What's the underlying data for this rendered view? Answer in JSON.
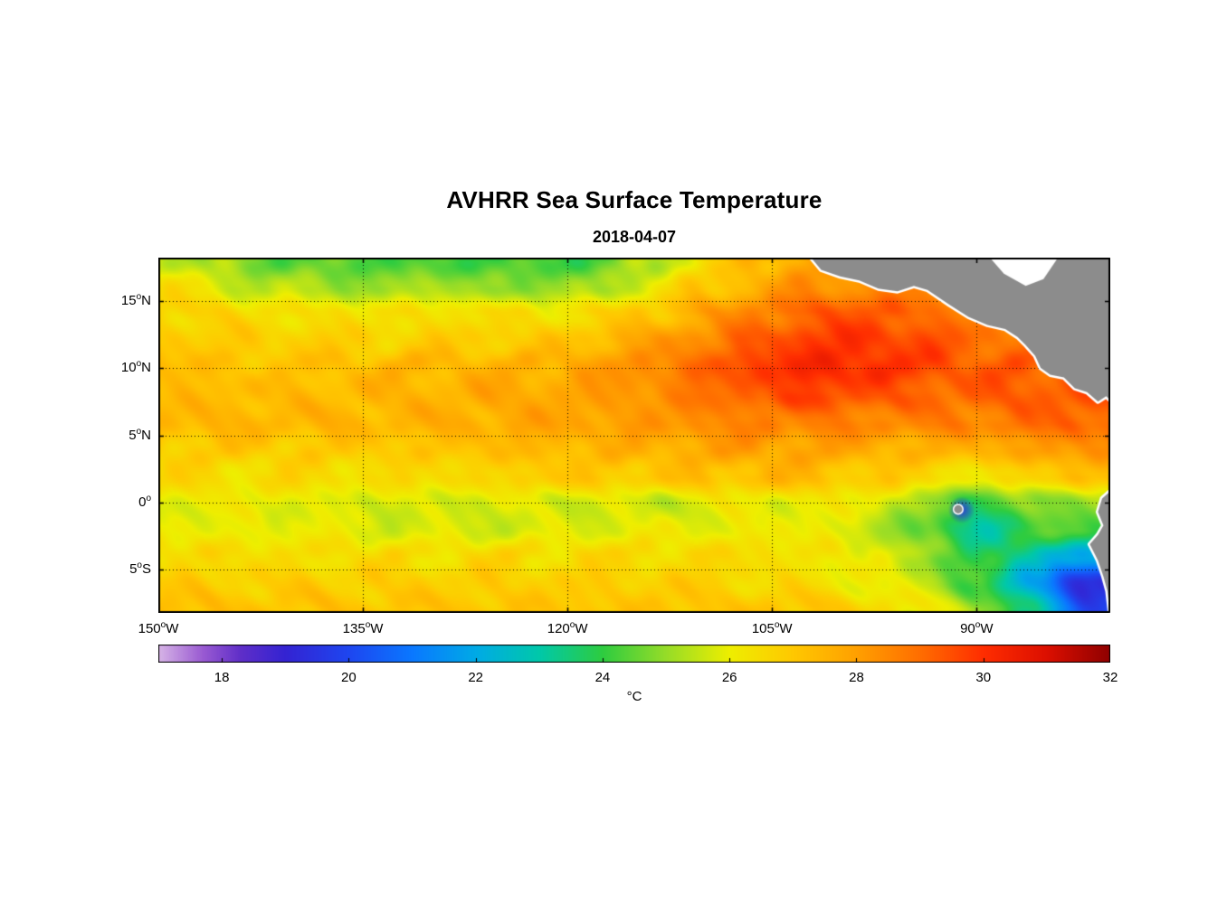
{
  "figure": {
    "title": "AVHRR Sea Surface Temperature",
    "subtitle": "2018-04-07"
  },
  "map": {
    "lon_range": [
      -150,
      -80.2
    ],
    "lat_range": [
      -8.2,
      18.2
    ],
    "x_ticks": [
      {
        "value": -150,
        "num": "150",
        "sup": "o",
        "hemi": "W"
      },
      {
        "value": -135,
        "num": "135",
        "sup": "o",
        "hemi": "W"
      },
      {
        "value": -120,
        "num": "120",
        "sup": "o",
        "hemi": "W"
      },
      {
        "value": -105,
        "num": "105",
        "sup": "o",
        "hemi": "W"
      },
      {
        "value": -90,
        "num": "90",
        "sup": "o",
        "hemi": "W"
      }
    ],
    "y_ticks": [
      {
        "value": 15,
        "num": "15",
        "sup": "o",
        "hemi": "N"
      },
      {
        "value": 10,
        "num": "10",
        "sup": "o",
        "hemi": "N"
      },
      {
        "value": 5,
        "num": "5",
        "sup": "o",
        "hemi": "N"
      },
      {
        "value": 0,
        "num": "0",
        "sup": "o",
        "hemi": ""
      },
      {
        "value": -5,
        "num": "5",
        "sup": "o",
        "hemi": "S"
      }
    ],
    "land_color": "#8C8C8C",
    "coast_outline": "#FFFFFF",
    "grid_color": "#000000",
    "cold_spots": [
      {
        "lon": -91.1,
        "lat": -0.55,
        "radius_deg": 1.0,
        "temp_c": 19.5
      }
    ],
    "land": {
      "polygons": [
        {
          "name": "central-america",
          "fill": "land",
          "points": [
            [
              -102.3,
              18.4
            ],
            [
              -101.4,
              17.3
            ],
            [
              -100.0,
              16.8
            ],
            [
              -98.6,
              16.5
            ],
            [
              -97.2,
              15.9
            ],
            [
              -95.8,
              15.7
            ],
            [
              -94.6,
              16.1
            ],
            [
              -93.6,
              15.8
            ],
            [
              -92.0,
              14.7
            ],
            [
              -90.6,
              13.8
            ],
            [
              -89.2,
              13.2
            ],
            [
              -87.9,
              12.9
            ],
            [
              -87.0,
              12.3
            ],
            [
              -86.4,
              11.7
            ],
            [
              -85.7,
              10.9
            ],
            [
              -85.3,
              10.0
            ],
            [
              -84.6,
              9.5
            ],
            [
              -83.6,
              9.3
            ],
            [
              -82.8,
              8.5
            ],
            [
              -81.9,
              8.2
            ],
            [
              -81.1,
              7.5
            ],
            [
              -80.5,
              7.9
            ],
            [
              -79.8,
              7.2
            ],
            [
              -79.8,
              18.4
            ]
          ]
        },
        {
          "name": "caribbean-gap",
          "fill": "white",
          "points": [
            [
              -89.2,
              18.4
            ],
            [
              -88.0,
              17.0
            ],
            [
              -86.4,
              16.1
            ],
            [
              -85.1,
              16.6
            ],
            [
              -83.9,
              18.4
            ]
          ]
        },
        {
          "name": "south-america",
          "fill": "land",
          "points": [
            [
              -79.8,
              1.2
            ],
            [
              -80.8,
              0.3
            ],
            [
              -81.1,
              -0.7
            ],
            [
              -80.7,
              -1.7
            ],
            [
              -81.1,
              -2.4
            ],
            [
              -81.7,
              -3.1
            ],
            [
              -81.1,
              -4.3
            ],
            [
              -80.7,
              -5.5
            ],
            [
              -80.4,
              -6.6
            ],
            [
              -80.2,
              -8.4
            ],
            [
              -79.8,
              -8.4
            ]
          ]
        }
      ],
      "islands": [
        {
          "name": "galapagos",
          "lon": -91.35,
          "lat": -0.5,
          "radius_deg": 0.3
        }
      ]
    }
  },
  "colorbar": {
    "min": 17,
    "max": 32,
    "label": "°C",
    "ticks": [
      {
        "value": 18,
        "label": "18"
      },
      {
        "value": 20,
        "label": "20"
      },
      {
        "value": 22,
        "label": "22"
      },
      {
        "value": 24,
        "label": "24"
      },
      {
        "value": 26,
        "label": "26"
      },
      {
        "value": 28,
        "label": "28"
      },
      {
        "value": 30,
        "label": "30"
      },
      {
        "value": 32,
        "label": "32"
      }
    ],
    "stops": [
      [
        17.0,
        "#D7B4E6"
      ],
      [
        17.7,
        "#9A5BD2"
      ],
      [
        18.3,
        "#5F2EC8"
      ],
      [
        19.0,
        "#3423D2"
      ],
      [
        20.0,
        "#1E46F0"
      ],
      [
        21.0,
        "#0A78FF"
      ],
      [
        22.0,
        "#00AAE6"
      ],
      [
        23.0,
        "#00C8AA"
      ],
      [
        24.0,
        "#2ECC40"
      ],
      [
        25.0,
        "#96DC28"
      ],
      [
        26.0,
        "#EEEE00"
      ],
      [
        27.0,
        "#FFC800"
      ],
      [
        28.0,
        "#FFA000"
      ],
      [
        29.0,
        "#FF6E00"
      ],
      [
        30.0,
        "#FF2D00"
      ],
      [
        31.0,
        "#DC0F00"
      ],
      [
        32.0,
        "#8F0000"
      ]
    ]
  },
  "chart_data": {
    "type": "heatmap",
    "title": "AVHRR Sea Surface Temperature",
    "subtitle": "2018-04-07",
    "units": "°C",
    "xlabel_ticks": [
      "150°W",
      "135°W",
      "120°W",
      "105°W",
      "90°W"
    ],
    "ylabel_ticks": [
      "15°N",
      "10°N",
      "5°N",
      "0°",
      "5°S"
    ],
    "lon_range": [
      -150,
      -80.2
    ],
    "lat_range": [
      -8.2,
      18.2
    ],
    "colorbar_range": [
      17,
      32
    ],
    "colorbar_ticks": [
      18,
      20,
      22,
      24,
      26,
      28,
      30,
      32
    ],
    "x_lon": [
      -150,
      -146,
      -142,
      -138,
      -134,
      -130,
      -126,
      -122,
      -118,
      -114,
      -110,
      -106,
      -102,
      -98,
      -94,
      -90,
      -86,
      -82
    ],
    "y_lat": [
      18,
      16,
      14,
      12,
      10,
      8,
      6,
      4,
      2,
      0,
      -2,
      -4,
      -6,
      -8
    ],
    "sst_c": [
      [
        25.8,
        25.2,
        24.4,
        24.6,
        24.1,
        24.4,
        24.0,
        24.4,
        24.1,
        25.4,
        26.4,
        27.4,
        28.0,
        28.2,
        28.2,
        28.0,
        27.8,
        27.8
      ],
      [
        26.4,
        26.0,
        25.4,
        25.2,
        25.0,
        25.3,
        25.0,
        24.9,
        25.2,
        26.0,
        27.0,
        27.8,
        28.3,
        28.5,
        28.4,
        28.2,
        28.0,
        28.0
      ],
      [
        26.8,
        26.6,
        26.4,
        26.4,
        26.3,
        26.4,
        26.4,
        26.3,
        26.5,
        27.0,
        27.8,
        28.6,
        29.2,
        29.4,
        29.0,
        28.6,
        28.5,
        28.5
      ],
      [
        27.0,
        27.0,
        26.9,
        26.9,
        26.8,
        26.9,
        27.0,
        27.0,
        27.4,
        28.0,
        28.6,
        29.4,
        29.9,
        30.0,
        29.6,
        29.1,
        29.0,
        29.0
      ],
      [
        27.3,
        27.1,
        27.0,
        27.1,
        27.3,
        27.4,
        27.4,
        27.5,
        27.9,
        28.4,
        29.0,
        29.8,
        30.1,
        30.0,
        29.6,
        29.2,
        29.2,
        29.4
      ],
      [
        27.4,
        27.4,
        27.4,
        27.4,
        27.5,
        27.6,
        27.8,
        27.9,
        28.0,
        28.4,
        28.9,
        29.4,
        29.8,
        29.5,
        29.2,
        29.2,
        29.4,
        29.5
      ],
      [
        27.4,
        27.4,
        27.4,
        27.4,
        27.4,
        27.5,
        27.6,
        27.8,
        27.9,
        28.0,
        28.4,
        28.5,
        28.6,
        28.5,
        28.5,
        28.6,
        28.9,
        29.1
      ],
      [
        27.0,
        27.0,
        27.0,
        27.0,
        27.0,
        27.1,
        27.3,
        27.4,
        27.5,
        27.6,
        27.9,
        28.0,
        28.0,
        27.7,
        27.6,
        27.6,
        28.0,
        28.4
      ],
      [
        26.5,
        26.5,
        26.5,
        26.5,
        26.5,
        26.5,
        26.6,
        26.9,
        27.0,
        27.0,
        27.1,
        27.4,
        27.2,
        27.0,
        26.6,
        26.2,
        26.7,
        27.2
      ],
      [
        26.1,
        26.0,
        26.0,
        25.9,
        25.6,
        25.9,
        25.6,
        26.0,
        25.6,
        25.6,
        25.9,
        26.0,
        26.1,
        26.0,
        25.2,
        23.8,
        25.0,
        25.0
      ],
      [
        26.0,
        26.0,
        26.0,
        26.0,
        25.9,
        25.6,
        25.9,
        25.6,
        26.0,
        26.0,
        26.0,
        26.1,
        26.1,
        25.6,
        24.4,
        23.2,
        24.0,
        24.5
      ],
      [
        26.5,
        26.5,
        26.4,
        26.4,
        26.5,
        26.4,
        26.5,
        26.5,
        26.5,
        26.5,
        26.5,
        26.5,
        26.2,
        26.0,
        25.2,
        23.8,
        23.0,
        21.8
      ],
      [
        26.9,
        26.9,
        26.9,
        26.9,
        26.9,
        26.9,
        26.9,
        26.9,
        26.9,
        26.9,
        26.9,
        26.6,
        26.5,
        26.2,
        25.6,
        24.2,
        22.0,
        19.2
      ],
      [
        27.3,
        27.1,
        27.0,
        27.0,
        27.0,
        27.0,
        27.0,
        27.0,
        27.0,
        27.0,
        27.0,
        27.0,
        27.0,
        26.6,
        26.1,
        25.2,
        23.2,
        20.0
      ]
    ]
  }
}
